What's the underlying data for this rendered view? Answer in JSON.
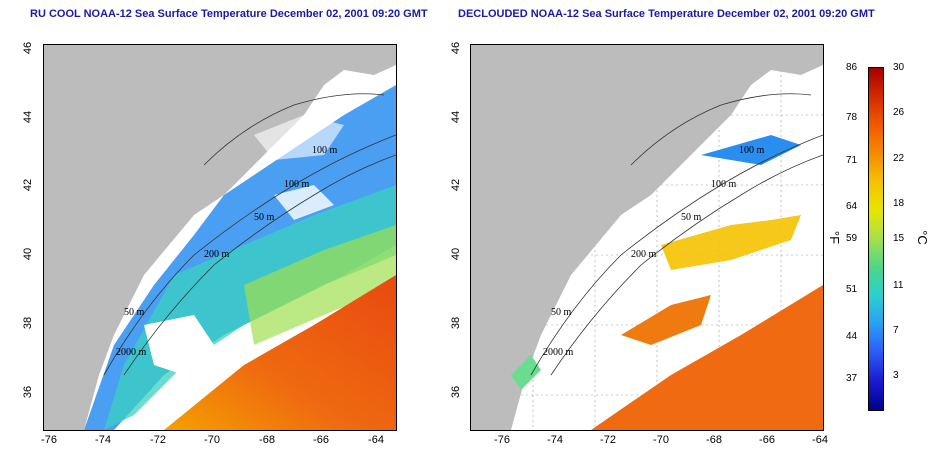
{
  "left_panel": {
    "title": "RU COOL NOAA-12 Sea Surface Temperature December 02, 2001 09:20 GMT",
    "contour_labels": [
      "100 m",
      "100 m",
      "50 m",
      "200 m",
      "50 m",
      "2000 m"
    ]
  },
  "right_panel": {
    "title": "DECLOUDED NOAA-12 Sea Surface Temperature December 02, 2001 09:20 GMT",
    "contour_labels": [
      "100 m",
      "100 m",
      "50 m",
      "200 m",
      "50 m",
      "2000 m"
    ]
  },
  "axes": {
    "x_ticks": [
      "-76",
      "-74",
      "-72",
      "-70",
      "-68",
      "-66",
      "-64"
    ],
    "y_ticks": [
      "46",
      "44",
      "42",
      "40",
      "38",
      "36"
    ]
  },
  "colorbar": {
    "fahrenheit_ticks": [
      "86",
      "78",
      "71",
      "64",
      "59",
      "51",
      "44",
      "37"
    ],
    "celsius_ticks": [
      "30",
      "26",
      "22",
      "18",
      "15",
      "11",
      "7",
      "3"
    ],
    "fahrenheit_unit": "°F",
    "celsius_unit": "°C",
    "colors": [
      "#a50000",
      "#d42a00",
      "#ef5a00",
      "#f58b00",
      "#f5c200",
      "#e6e600",
      "#a6e04a",
      "#4ad68a",
      "#2ad0d0",
      "#2a9ef5",
      "#2a5af5",
      "#1a1ad0",
      "#00008a"
    ]
  },
  "colors": {
    "land": "#bcbcbc",
    "cloud": "#ffffff",
    "title_text": "#1a1aa6"
  }
}
